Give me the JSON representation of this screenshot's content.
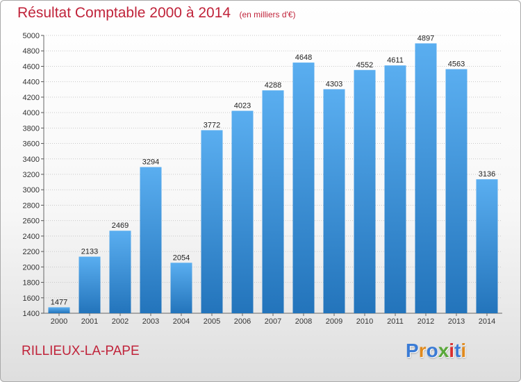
{
  "header": {
    "title": "Résultat Comptable 2000 à 2014",
    "subtitle": "(en milliers d'€)"
  },
  "footer": {
    "city": "RILLIEUX-LA-PAPE",
    "brand": "Proxiti"
  },
  "colors": {
    "title": "#c0233a",
    "bar_top": "#5aaef0",
    "bar_bottom": "#2374bb",
    "grid": "#c8c8c8",
    "logo_letters": [
      "#3a7bd5",
      "#e08a1e",
      "#3a7bd5",
      "#5aa83a",
      "#d92e2e",
      "#3a7bd5",
      "#e08a1e"
    ]
  },
  "chart_data": {
    "type": "bar",
    "title": "Résultat Comptable 2000 à 2014",
    "subtitle": "(en milliers d'€)",
    "xlabel": "",
    "ylabel": "",
    "categories": [
      "2000",
      "2001",
      "2002",
      "2003",
      "2004",
      "2005",
      "2006",
      "2007",
      "2008",
      "2009",
      "2010",
      "2011",
      "2012",
      "2013",
      "2014"
    ],
    "values": [
      1477,
      2133,
      2469,
      3294,
      2054,
      3772,
      4023,
      4288,
      4648,
      4303,
      4552,
      4611,
      4897,
      4563,
      3136
    ],
    "ylim": [
      1400,
      5000
    ],
    "yticks": [
      1400,
      1600,
      1800,
      2000,
      2200,
      2400,
      2600,
      2800,
      3000,
      3200,
      3400,
      3600,
      3800,
      4000,
      4200,
      4400,
      4600,
      4800,
      5000
    ],
    "grid": true,
    "data_labels": true,
    "legend": "none"
  }
}
